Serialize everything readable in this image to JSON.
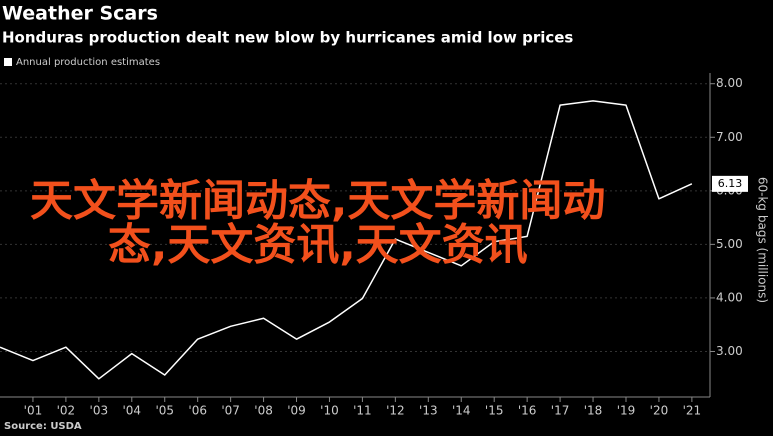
{
  "chart_data": {
    "type": "line",
    "title": "Weather Scars",
    "subtitle": "Honduras production dealt new blow by hurricanes amid low prices",
    "y_label": "60-kg bags (millions)",
    "source": "Source: USDA",
    "overlay_text": [
      "天文学新闻动态,天文学新闻动",
      "态,天文资讯,天文资讯"
    ],
    "x": [
      2000,
      2001,
      2002,
      2003,
      2004,
      2005,
      2006,
      2007,
      2008,
      2009,
      2010,
      2011,
      2012,
      2013,
      2014,
      2015,
      2016,
      2017,
      2018,
      2019,
      2020,
      2021
    ],
    "series": [
      {
        "name": "Annual production estimates",
        "color": "#ffffff",
        "values": [
          3.08,
          2.83,
          3.08,
          2.49,
          2.96,
          2.56,
          3.23,
          3.47,
          3.62,
          3.23,
          3.55,
          3.99,
          5.1,
          4.85,
          4.6,
          5.05,
          5.15,
          7.6,
          7.68,
          7.6,
          5.85,
          6.13
        ]
      }
    ],
    "xlim": [
      2000,
      2021.55
    ],
    "xticks": [
      {
        "value": 2001,
        "label": "'01"
      },
      {
        "value": 2002,
        "label": "'02"
      },
      {
        "value": 2003,
        "label": "'03"
      },
      {
        "value": 2004,
        "label": "'04"
      },
      {
        "value": 2005,
        "label": "'05"
      },
      {
        "value": 2006,
        "label": "'06"
      },
      {
        "value": 2007,
        "label": "'07"
      },
      {
        "value": 2008,
        "label": "'08"
      },
      {
        "value": 2009,
        "label": "'09"
      },
      {
        "value": 2010,
        "label": "'10"
      },
      {
        "value": 2011,
        "label": "'11"
      },
      {
        "value": 2012,
        "label": "'12"
      },
      {
        "value": 2013,
        "label": "'13"
      },
      {
        "value": 2014,
        "label": "'14"
      },
      {
        "value": 2015,
        "label": "'15"
      },
      {
        "value": 2016,
        "label": "'16"
      },
      {
        "value": 2017,
        "label": "'17"
      },
      {
        "value": 2018,
        "label": "'18"
      },
      {
        "value": 2019,
        "label": "'19"
      },
      {
        "value": 2020,
        "label": "'20"
      },
      {
        "value": 2021,
        "label": "'21"
      }
    ],
    "ylim": [
      2.15,
      8.2
    ],
    "yticks": [
      {
        "value": 3,
        "label": "3.00"
      },
      {
        "value": 4,
        "label": "4.00"
      },
      {
        "value": 5,
        "label": "5.00"
      },
      {
        "value": 6,
        "label": "6.00"
      },
      {
        "value": 7,
        "label": "7.00"
      },
      {
        "value": 8,
        "label": "8.00"
      }
    ],
    "grid": true
  }
}
